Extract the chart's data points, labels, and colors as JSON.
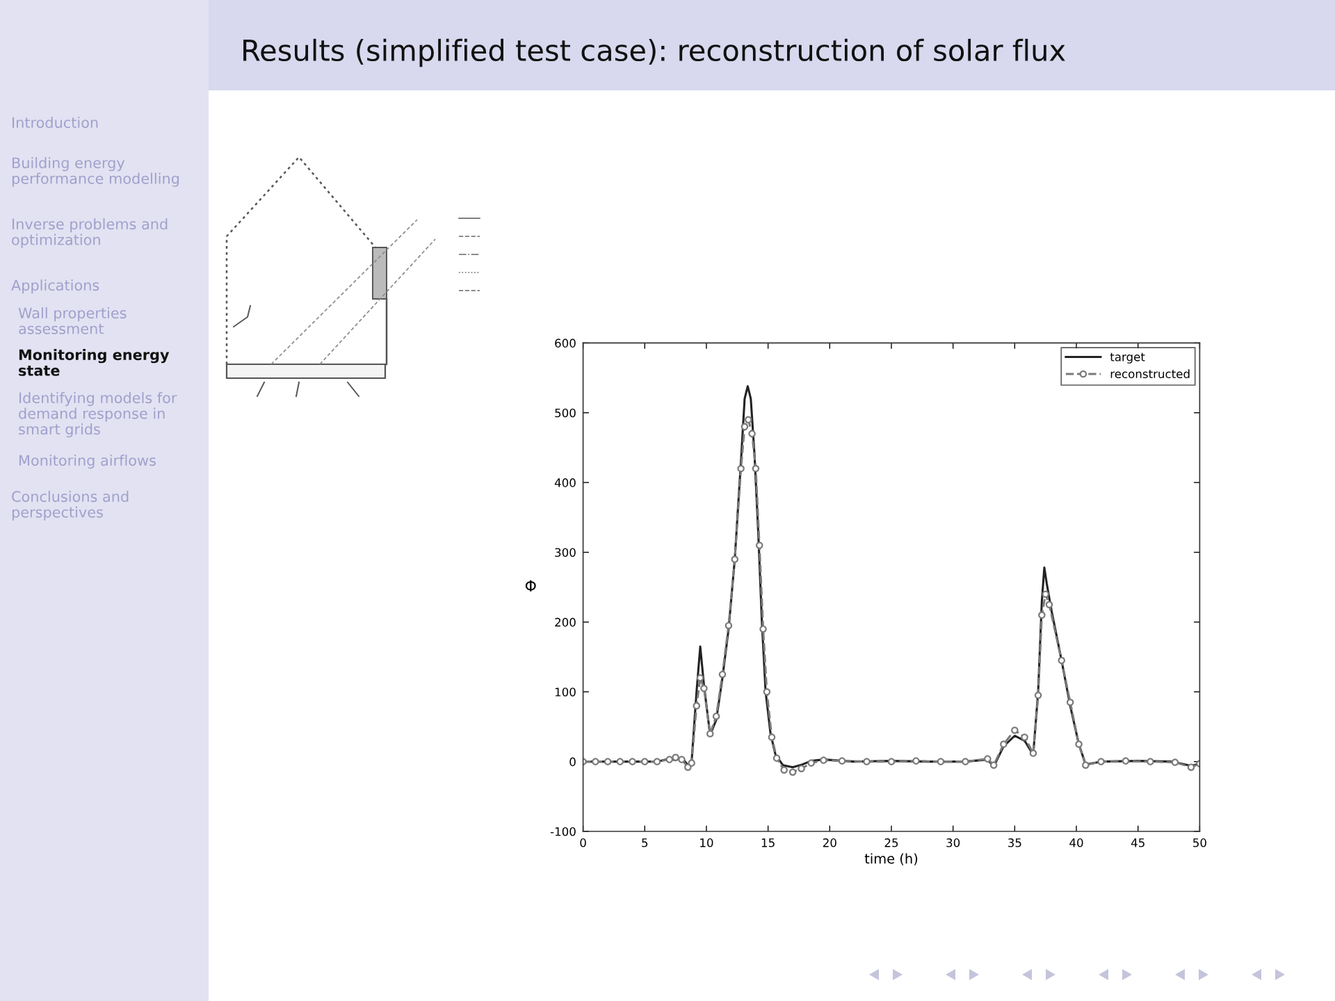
{
  "chart_data": {
    "type": "line",
    "title": "Results (simplified test case): reconstruction of solar flux",
    "xlabel": "time (h)",
    "ylabel": "Φ",
    "xlim": [
      0,
      50
    ],
    "xticks": [
      0,
      5,
      10,
      15,
      20,
      25,
      30,
      35,
      40,
      45,
      50
    ],
    "ylim": [
      -100,
      600
    ],
    "yticks": [
      -100,
      0,
      100,
      200,
      300,
      400,
      500,
      600
    ],
    "legend": "top right",
    "annotations": [
      "Introduction",
      "Building energy\nperformance modelling",
      "Inverse problems and\noptimization",
      "Applications",
      "Wall properties\nassessment",
      "Monitoring energy\nstate",
      "Identifying models for\ndemand response in\nsmart grids",
      "Monitoring airflows",
      "Conclusions and\nperspectives"
    ],
    "series": [
      {
        "name": "target",
        "color": "#222222",
        "line_style": "solid",
        "marker": "none",
        "x": [
          0,
          2,
          4,
          6,
          7,
          7.5,
          8,
          8.5,
          8.8,
          9.2,
          9.5,
          9.8,
          10.3,
          10.8,
          11.3,
          11.8,
          12.3,
          12.8,
          13.1,
          13.35,
          13.6,
          13.9,
          14.2,
          14.5,
          14.8,
          15.2,
          15.6,
          16.2,
          17,
          17.8,
          18.5,
          19.5,
          22,
          25,
          28,
          31,
          32.8,
          33.3,
          34.1,
          35,
          35.8,
          36.5,
          36.9,
          37.2,
          37.4,
          37.6,
          38,
          38.8,
          39.5,
          40.2,
          40.75,
          42,
          45,
          47.8,
          49.3,
          50
        ],
        "values": [
          0,
          0,
          0,
          0,
          4,
          2,
          6,
          -5,
          0,
          100,
          165,
          110,
          38,
          60,
          120,
          190,
          290,
          430,
          520,
          538,
          520,
          440,
          330,
          200,
          100,
          40,
          10,
          -5,
          -8,
          -4,
          1,
          3,
          0,
          1,
          0,
          0,
          3,
          -7,
          22,
          37,
          30,
          10,
          100,
          230,
          278,
          255,
          215,
          145,
          80,
          25,
          -4,
          0,
          1,
          0,
          -6,
          -3
        ]
      },
      {
        "name": "reconstructed",
        "color": "#7a7a7a",
        "line_style": "dashed",
        "marker": "circle",
        "x": [
          0,
          1,
          2,
          3,
          4,
          5,
          6,
          7,
          7.5,
          8,
          8.5,
          8.8,
          9.2,
          9.5,
          9.8,
          10.3,
          10.8,
          11.3,
          11.8,
          12.3,
          12.8,
          13.1,
          13.4,
          13.7,
          14.0,
          14.3,
          14.6,
          14.9,
          15.3,
          15.7,
          16.3,
          17,
          17.7,
          18.5,
          19.5,
          21,
          23,
          25,
          27,
          29,
          31,
          32.8,
          33.3,
          34.1,
          35,
          35.8,
          36.5,
          36.9,
          37.2,
          37.5,
          37.8,
          38.8,
          39.5,
          40.2,
          40.75,
          42,
          44,
          46,
          48,
          49.3,
          50
        ],
        "values": [
          0,
          0,
          0,
          0,
          0,
          0,
          0,
          3,
          6,
          3,
          -8,
          -2,
          80,
          120,
          105,
          40,
          65,
          125,
          195,
          290,
          420,
          480,
          490,
          470,
          420,
          310,
          190,
          100,
          35,
          5,
          -12,
          -15,
          -10,
          -2,
          2,
          1,
          0,
          0,
          1,
          0,
          0,
          4,
          -5,
          25,
          45,
          35,
          12,
          95,
          210,
          240,
          225,
          145,
          85,
          25,
          -5,
          0,
          1,
          0,
          -1,
          -8,
          -3
        ]
      }
    ]
  }
}
